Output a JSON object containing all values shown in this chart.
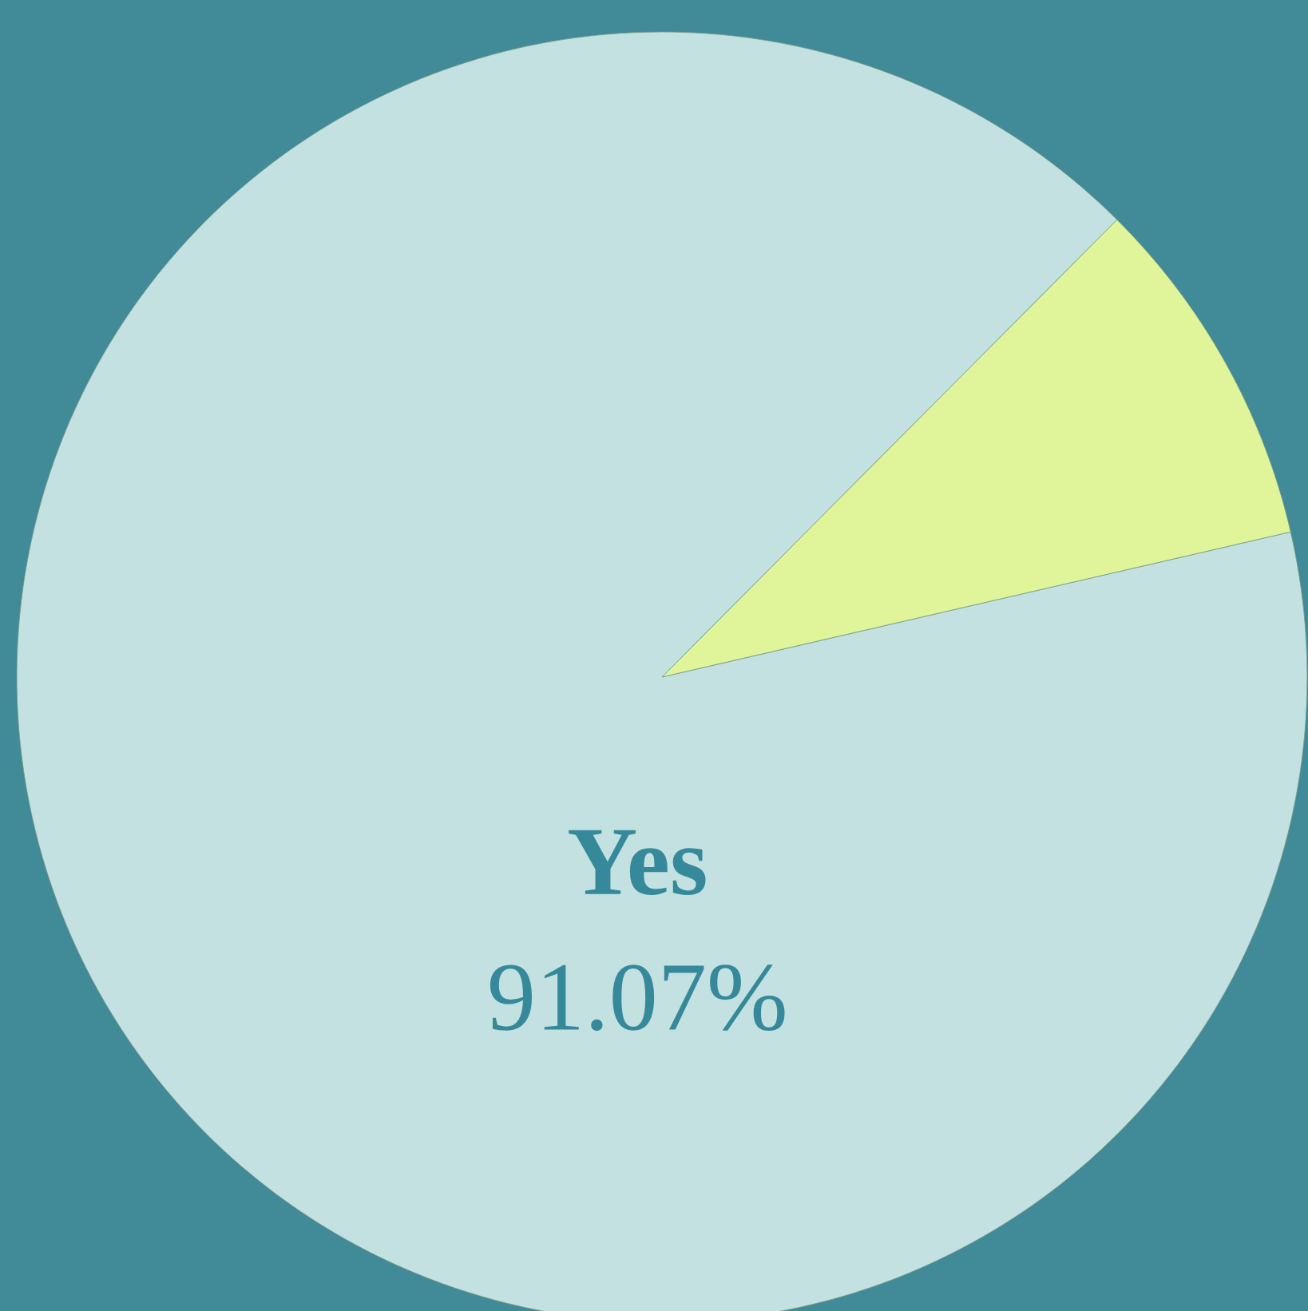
{
  "chart_data": {
    "type": "pie",
    "categories": [
      "Yes",
      null
    ],
    "values": [
      91.07,
      8.93
    ],
    "colors": [
      "#c4e1e1",
      "#e0f59a"
    ],
    "value_labels": [
      "91.07%",
      null
    ]
  }
}
